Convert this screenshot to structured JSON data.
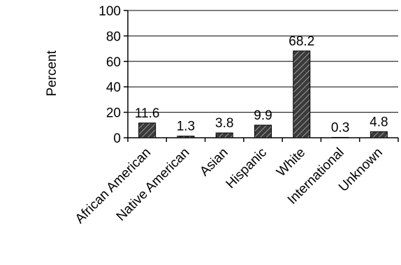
{
  "chart_data": {
    "type": "bar",
    "categories": [
      "African American",
      "Native American",
      "Asian",
      "Hispanic",
      "White",
      "International",
      "Unknown"
    ],
    "values": [
      11.6,
      1.3,
      3.8,
      9.9,
      68.2,
      0.3,
      4.8
    ],
    "data_labels": [
      "11.6",
      "1.3",
      "3.8",
      "9.9",
      "68.2",
      "0.3",
      "4.8"
    ],
    "title": "",
    "xlabel": "",
    "ylabel": "Percent",
    "ylim": [
      0,
      100
    ],
    "yticks": [
      0,
      20,
      40,
      60,
      80,
      100
    ],
    "ytick_labels": [
      "0",
      "20",
      "40",
      "60",
      "80",
      "100"
    ],
    "grid": false,
    "legend": "none",
    "bar_color": "#404040",
    "bar_pattern": "diagonal-hatch"
  }
}
